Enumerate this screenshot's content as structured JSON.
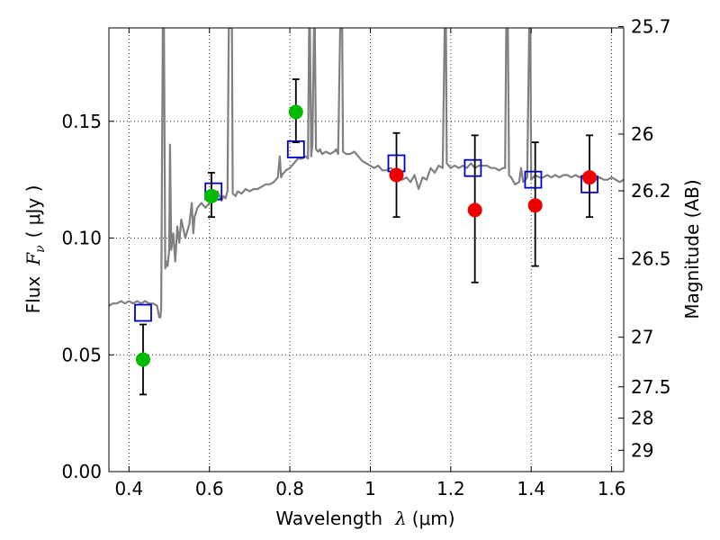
{
  "chart_data": {
    "type": "scatter",
    "title": "",
    "xlabel": {
      "prefix": "Wavelength",
      "symbol": "λ",
      "unit": "(μm)"
    },
    "ylabel": {
      "prefix": "Flux",
      "symbol": "F",
      "subscript": "ν",
      "unit": "( μJy )"
    },
    "y2label": "Magnitude (AB)",
    "xlim": [
      0.35,
      1.63
    ],
    "ylim": [
      0.0,
      0.19
    ],
    "grid": true,
    "grid_style": "dotted",
    "x_ticks": [
      {
        "value": 0.4,
        "label": "0.4"
      },
      {
        "value": 0.6,
        "label": "0.6"
      },
      {
        "value": 0.8,
        "label": "0.8"
      },
      {
        "value": 1.0,
        "label": "1"
      },
      {
        "value": 1.2,
        "label": "1.2"
      },
      {
        "value": 1.4,
        "label": "1.4"
      },
      {
        "value": 1.6,
        "label": "1.6"
      }
    ],
    "y_ticks": [
      {
        "value": 0.0,
        "label": "0.00"
      },
      {
        "value": 0.05,
        "label": "0.05"
      },
      {
        "value": 0.1,
        "label": "0.10"
      },
      {
        "value": 0.15,
        "label": "0.15"
      }
    ],
    "y2_ticks": [
      {
        "mag": 25.7,
        "label": "25.7"
      },
      {
        "mag": 26.0,
        "label": "26"
      },
      {
        "mag": 26.2,
        "label": "26.2"
      },
      {
        "mag": 26.5,
        "label": "26.5"
      },
      {
        "mag": 27.0,
        "label": "27"
      },
      {
        "mag": 27.5,
        "label": "27.5"
      },
      {
        "mag": 28.0,
        "label": "28"
      },
      {
        "mag": 29.0,
        "label": "29"
      }
    ],
    "series": [
      {
        "kind": "line",
        "color": "#808080",
        "points": [
          [
            0.35,
            0.071
          ],
          [
            0.36,
            0.072
          ],
          [
            0.37,
            0.072
          ],
          [
            0.38,
            0.073
          ],
          [
            0.39,
            0.072
          ],
          [
            0.4,
            0.073
          ],
          [
            0.41,
            0.072
          ],
          [
            0.42,
            0.073
          ],
          [
            0.43,
            0.072
          ],
          [
            0.44,
            0.073
          ],
          [
            0.45,
            0.072
          ],
          [
            0.46,
            0.072
          ],
          [
            0.47,
            0.071
          ],
          [
            0.475,
            0.066
          ],
          [
            0.478,
            0.066
          ],
          [
            0.48,
            0.07
          ],
          [
            0.484,
            0.19
          ],
          [
            0.487,
            0.19
          ],
          [
            0.49,
            0.087
          ],
          [
            0.493,
            0.09
          ],
          [
            0.496,
            0.088
          ],
          [
            0.5,
            0.095
          ],
          [
            0.502,
            0.14
          ],
          [
            0.505,
            0.095
          ],
          [
            0.51,
            0.102
          ],
          [
            0.515,
            0.09
          ],
          [
            0.52,
            0.105
          ],
          [
            0.525,
            0.098
          ],
          [
            0.53,
            0.108
          ],
          [
            0.54,
            0.1
          ],
          [
            0.55,
            0.106
          ],
          [
            0.556,
            0.115
          ],
          [
            0.56,
            0.102
          ],
          [
            0.563,
            0.109
          ],
          [
            0.57,
            0.113
          ],
          [
            0.58,
            0.115
          ],
          [
            0.59,
            0.113
          ],
          [
            0.6,
            0.115
          ],
          [
            0.61,
            0.118
          ],
          [
            0.62,
            0.12
          ],
          [
            0.63,
            0.116
          ],
          [
            0.635,
            0.118
          ],
          [
            0.64,
            0.117
          ],
          [
            0.645,
            0.12
          ],
          [
            0.648,
            0.19
          ],
          [
            0.65,
            0.19
          ],
          [
            0.652,
            0.19
          ],
          [
            0.655,
            0.19
          ],
          [
            0.656,
            0.19
          ],
          [
            0.658,
            0.119
          ],
          [
            0.665,
            0.118
          ],
          [
            0.67,
            0.12
          ],
          [
            0.68,
            0.119
          ],
          [
            0.69,
            0.121
          ],
          [
            0.7,
            0.12
          ],
          [
            0.71,
            0.121
          ],
          [
            0.72,
            0.121
          ],
          [
            0.73,
            0.122
          ],
          [
            0.74,
            0.123
          ],
          [
            0.75,
            0.123
          ],
          [
            0.76,
            0.124
          ],
          [
            0.77,
            0.126
          ],
          [
            0.775,
            0.135
          ],
          [
            0.778,
            0.126
          ],
          [
            0.78,
            0.127
          ],
          [
            0.79,
            0.129
          ],
          [
            0.8,
            0.13
          ],
          [
            0.81,
            0.132
          ],
          [
            0.82,
            0.134
          ],
          [
            0.83,
            0.134
          ],
          [
            0.84,
            0.135
          ],
          [
            0.845,
            0.134
          ],
          [
            0.848,
            0.19
          ],
          [
            0.85,
            0.19
          ],
          [
            0.853,
            0.135
          ],
          [
            0.856,
            0.14
          ],
          [
            0.86,
            0.19
          ],
          [
            0.862,
            0.19
          ],
          [
            0.865,
            0.138
          ],
          [
            0.87,
            0.137
          ],
          [
            0.875,
            0.138
          ],
          [
            0.88,
            0.136
          ],
          [
            0.89,
            0.137
          ],
          [
            0.9,
            0.136
          ],
          [
            0.91,
            0.137
          ],
          [
            0.915,
            0.138
          ],
          [
            0.92,
            0.136
          ],
          [
            0.925,
            0.19
          ],
          [
            0.927,
            0.19
          ],
          [
            0.93,
            0.19
          ],
          [
            0.932,
            0.137
          ],
          [
            0.94,
            0.136
          ],
          [
            0.95,
            0.136
          ],
          [
            0.96,
            0.137
          ],
          [
            0.97,
            0.135
          ],
          [
            0.98,
            0.133
          ],
          [
            0.99,
            0.132
          ],
          [
            1.0,
            0.131
          ],
          [
            1.01,
            0.13
          ],
          [
            1.02,
            0.131
          ],
          [
            1.03,
            0.129
          ],
          [
            1.04,
            0.129
          ],
          [
            1.05,
            0.13
          ],
          [
            1.06,
            0.129
          ],
          [
            1.07,
            0.127
          ],
          [
            1.08,
            0.125
          ],
          [
            1.09,
            0.126
          ],
          [
            1.1,
            0.124
          ],
          [
            1.11,
            0.127
          ],
          [
            1.12,
            0.121
          ],
          [
            1.13,
            0.126
          ],
          [
            1.14,
            0.125
          ],
          [
            1.15,
            0.13
          ],
          [
            1.16,
            0.128
          ],
          [
            1.17,
            0.131
          ],
          [
            1.18,
            0.13
          ],
          [
            1.185,
            0.19
          ],
          [
            1.188,
            0.19
          ],
          [
            1.19,
            0.132
          ],
          [
            1.2,
            0.13
          ],
          [
            1.21,
            0.131
          ],
          [
            1.22,
            0.13
          ],
          [
            1.23,
            0.131
          ],
          [
            1.24,
            0.13
          ],
          [
            1.25,
            0.132
          ],
          [
            1.26,
            0.13
          ],
          [
            1.27,
            0.131
          ],
          [
            1.28,
            0.131
          ],
          [
            1.29,
            0.131
          ],
          [
            1.3,
            0.13
          ],
          [
            1.31,
            0.13
          ],
          [
            1.32,
            0.129
          ],
          [
            1.33,
            0.13
          ],
          [
            1.335,
            0.13
          ],
          [
            1.338,
            0.19
          ],
          [
            1.342,
            0.19
          ],
          [
            1.345,
            0.127
          ],
          [
            1.35,
            0.126
          ],
          [
            1.36,
            0.123
          ],
          [
            1.37,
            0.124
          ],
          [
            1.375,
            0.13
          ],
          [
            1.38,
            0.124
          ],
          [
            1.39,
            0.126
          ],
          [
            1.395,
            0.19
          ],
          [
            1.398,
            0.19
          ],
          [
            1.4,
            0.125
          ],
          [
            1.41,
            0.127
          ],
          [
            1.42,
            0.126
          ],
          [
            1.43,
            0.126
          ],
          [
            1.44,
            0.127
          ],
          [
            1.45,
            0.126
          ],
          [
            1.46,
            0.127
          ],
          [
            1.47,
            0.126
          ],
          [
            1.48,
            0.127
          ],
          [
            1.49,
            0.127
          ],
          [
            1.5,
            0.126
          ],
          [
            1.51,
            0.127
          ],
          [
            1.52,
            0.126
          ],
          [
            1.53,
            0.127
          ],
          [
            1.54,
            0.126
          ],
          [
            1.55,
            0.126
          ],
          [
            1.56,
            0.125
          ],
          [
            1.57,
            0.126
          ],
          [
            1.58,
            0.125
          ],
          [
            1.59,
            0.125
          ],
          [
            1.6,
            0.126
          ],
          [
            1.61,
            0.125
          ],
          [
            1.62,
            0.124
          ],
          [
            1.63,
            0.125
          ]
        ]
      },
      {
        "kind": "model_photometry",
        "marker": "square",
        "color": "#0000cc",
        "points": [
          {
            "x": 0.435,
            "y": 0.068
          },
          {
            "x": 0.61,
            "y": 0.12
          },
          {
            "x": 0.815,
            "y": 0.138
          },
          {
            "x": 1.065,
            "y": 0.132
          },
          {
            "x": 1.255,
            "y": 0.13
          },
          {
            "x": 1.405,
            "y": 0.125
          },
          {
            "x": 1.545,
            "y": 0.123
          }
        ]
      },
      {
        "kind": "observed",
        "marker": "circle",
        "points": [
          {
            "x": 0.435,
            "y": 0.048,
            "lo": 0.033,
            "hi": 0.063,
            "color": "#00bb00"
          },
          {
            "x": 0.605,
            "y": 0.118,
            "lo": 0.109,
            "hi": 0.128,
            "color": "#00bb00"
          },
          {
            "x": 0.815,
            "y": 0.154,
            "lo": 0.141,
            "hi": 0.168,
            "color": "#00bb00"
          },
          {
            "x": 1.065,
            "y": 0.127,
            "lo": 0.109,
            "hi": 0.145,
            "color": "#ee0000"
          },
          {
            "x": 1.26,
            "y": 0.112,
            "lo": 0.081,
            "hi": 0.144,
            "color": "#ee0000"
          },
          {
            "x": 1.41,
            "y": 0.114,
            "lo": 0.088,
            "hi": 0.141,
            "color": "#ee0000"
          },
          {
            "x": 1.545,
            "y": 0.126,
            "lo": 0.109,
            "hi": 0.144,
            "color": "#ee0000"
          }
        ]
      }
    ]
  }
}
